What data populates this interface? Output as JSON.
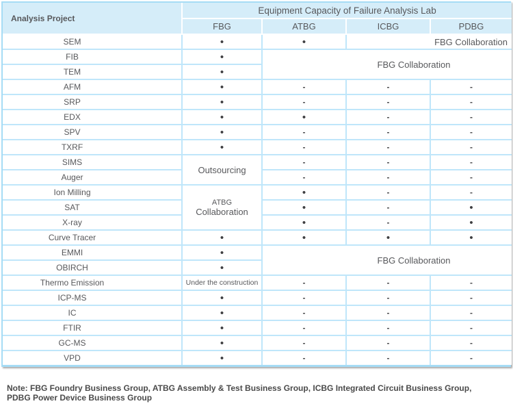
{
  "table": {
    "corner_header": "Analysis Project",
    "group_header": "Equipment Capacity of Failure Analysis Lab",
    "columns": [
      "FBG",
      "ATBG",
      "ICBG",
      "PDBG"
    ],
    "rows": [
      {
        "label": "SEM",
        "cells": [
          {
            "t": "dot"
          },
          {
            "t": "dot"
          },
          {
            "t": "text",
            "text": "FBG Collaboration",
            "colspan": 2,
            "cls": "align-right"
          }
        ]
      },
      {
        "label": "FIB",
        "cells": [
          {
            "t": "dot"
          },
          {
            "t": "text",
            "text": "FBG Collaboration",
            "colspan": 3,
            "rowspan": 2,
            "cls": "shift"
          }
        ]
      },
      {
        "label": "TEM",
        "cells": [
          {
            "t": "dot"
          }
        ]
      },
      {
        "label": "AFM",
        "cells": [
          {
            "t": "dot"
          },
          {
            "t": "dash"
          },
          {
            "t": "dash"
          },
          {
            "t": "dash"
          }
        ]
      },
      {
        "label": "SRP",
        "cells": [
          {
            "t": "dot"
          },
          {
            "t": "dash"
          },
          {
            "t": "dash"
          },
          {
            "t": "dash"
          }
        ]
      },
      {
        "label": "EDX",
        "cells": [
          {
            "t": "dot"
          },
          {
            "t": "dot"
          },
          {
            "t": "dash"
          },
          {
            "t": "dash"
          }
        ]
      },
      {
        "label": "SPV",
        "cells": [
          {
            "t": "dot"
          },
          {
            "t": "dash"
          },
          {
            "t": "dash"
          },
          {
            "t": "dash"
          }
        ]
      },
      {
        "label": "TXRF",
        "cells": [
          {
            "t": "dot"
          },
          {
            "t": "dash"
          },
          {
            "t": "dash"
          },
          {
            "t": "dash"
          }
        ]
      },
      {
        "label": "SIMS",
        "cells": [
          {
            "t": "text",
            "text": "Outsourcing",
            "rowspan": 2
          },
          {
            "t": "dash"
          },
          {
            "t": "dash"
          },
          {
            "t": "dash"
          }
        ]
      },
      {
        "label": "Auger",
        "cells": [
          {
            "t": "dash"
          },
          {
            "t": "dash"
          },
          {
            "t": "dash"
          }
        ]
      },
      {
        "label": "Ion Milling",
        "cells": [
          {
            "t": "text",
            "lines": [
              "ATBG",
              "Collaboration"
            ],
            "rowspan": 3,
            "cls": "twolines"
          },
          {
            "t": "dot"
          },
          {
            "t": "dash"
          },
          {
            "t": "dash"
          }
        ]
      },
      {
        "label": "SAT",
        "cells": [
          {
            "t": "dot"
          },
          {
            "t": "dash"
          },
          {
            "t": "dot"
          }
        ]
      },
      {
        "label": "X-ray",
        "cells": [
          {
            "t": "dot"
          },
          {
            "t": "dash"
          },
          {
            "t": "dot"
          }
        ]
      },
      {
        "label": "Curve Tracer",
        "cells": [
          {
            "t": "dot"
          },
          {
            "t": "dot"
          },
          {
            "t": "dot"
          },
          {
            "t": "dot"
          }
        ]
      },
      {
        "label": "EMMI",
        "cells": [
          {
            "t": "dot"
          },
          {
            "t": "text",
            "text": "FBG Collaboration",
            "colspan": 3,
            "rowspan": 2,
            "cls": "shift"
          }
        ]
      },
      {
        "label": "OBIRCH",
        "cells": [
          {
            "t": "dot"
          }
        ]
      },
      {
        "label": "Thermo Emission",
        "cells": [
          {
            "t": "text",
            "text": "Under the construction",
            "cls": "small"
          },
          {
            "t": "dash"
          },
          {
            "t": "dash"
          },
          {
            "t": "dash"
          }
        ]
      },
      {
        "label": "ICP-MS",
        "cells": [
          {
            "t": "dot"
          },
          {
            "t": "dash"
          },
          {
            "t": "dash"
          },
          {
            "t": "dash"
          }
        ]
      },
      {
        "label": "IC",
        "cells": [
          {
            "t": "dot"
          },
          {
            "t": "dash"
          },
          {
            "t": "dash"
          },
          {
            "t": "dash"
          }
        ]
      },
      {
        "label": "FTIR",
        "cells": [
          {
            "t": "dot"
          },
          {
            "t": "dash"
          },
          {
            "t": "dash"
          },
          {
            "t": "dash"
          }
        ]
      },
      {
        "label": "GC-MS",
        "cells": [
          {
            "t": "dot"
          },
          {
            "t": "dash"
          },
          {
            "t": "dash"
          },
          {
            "t": "dash"
          }
        ]
      },
      {
        "label": "VPD",
        "cells": [
          {
            "t": "dot"
          },
          {
            "t": "dash"
          },
          {
            "t": "dash"
          },
          {
            "t": "dash"
          }
        ]
      }
    ]
  },
  "glyphs": {
    "dot": "•",
    "dash": "-"
  },
  "note": {
    "line1": "Note: FBG Foundry Business Group, ATBG Assembly & Test Business Group, ICBG Integrated Circuit Business Group,",
    "line2": "PDBG Power Device Business Group"
  },
  "colors": {
    "header_bg": "#d5edf9",
    "grid": "#bfe6fa",
    "outer_border": "#a6dcf5",
    "text": "#57585b",
    "note_text": "#4a4a4a",
    "shadow": "#aaaaaa"
  }
}
